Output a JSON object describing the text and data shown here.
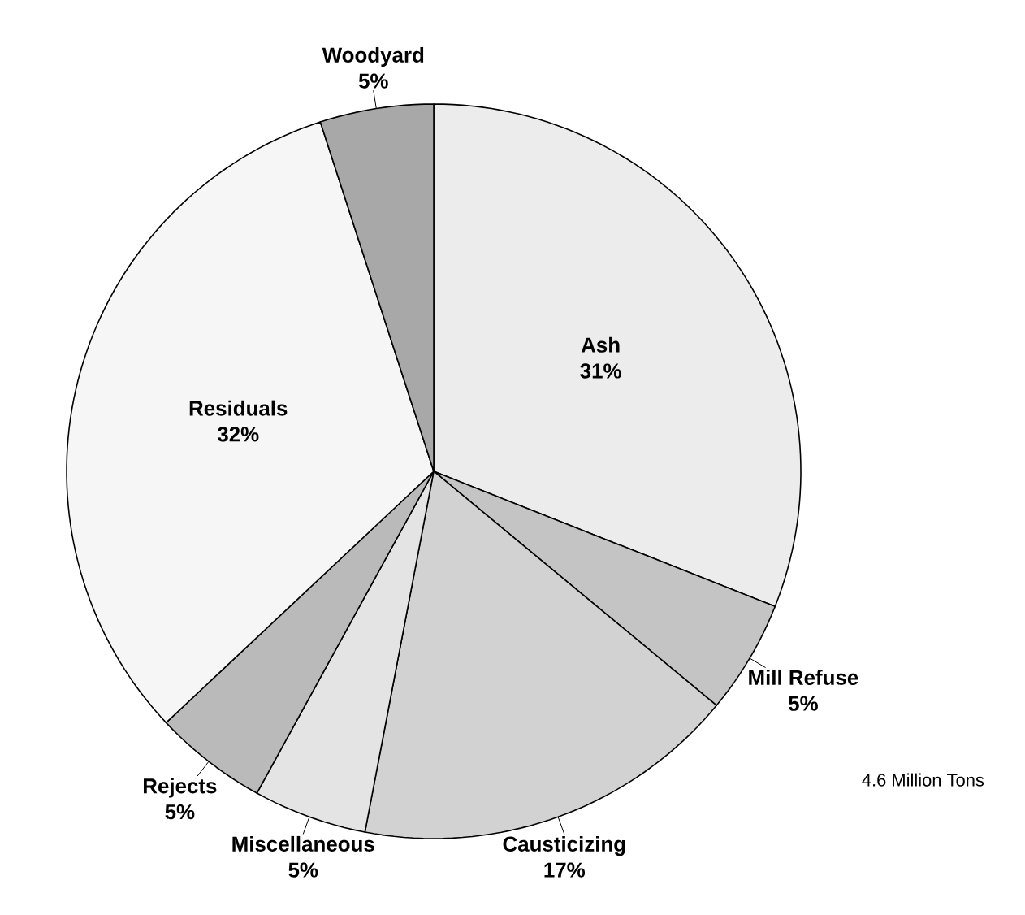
{
  "chart_data": {
    "type": "pie",
    "categories": [
      "Ash",
      "Mill Refuse",
      "Causticizing",
      "Miscellaneous",
      "Rejects",
      "Residuals",
      "Woodyard"
    ],
    "values": [
      31,
      5,
      17,
      5,
      5,
      32,
      5
    ],
    "value_labels": [
      "31%",
      "5%",
      "17%",
      "5%",
      "5%",
      "32%",
      "5%"
    ],
    "colors": [
      "#ececec",
      "#c4c4c4",
      "#d2d2d2",
      "#e4e4e4",
      "#bababa",
      "#f6f6f6",
      "#a8a8a8"
    ],
    "annotations": [
      "4.6 Million Tons"
    ]
  }
}
